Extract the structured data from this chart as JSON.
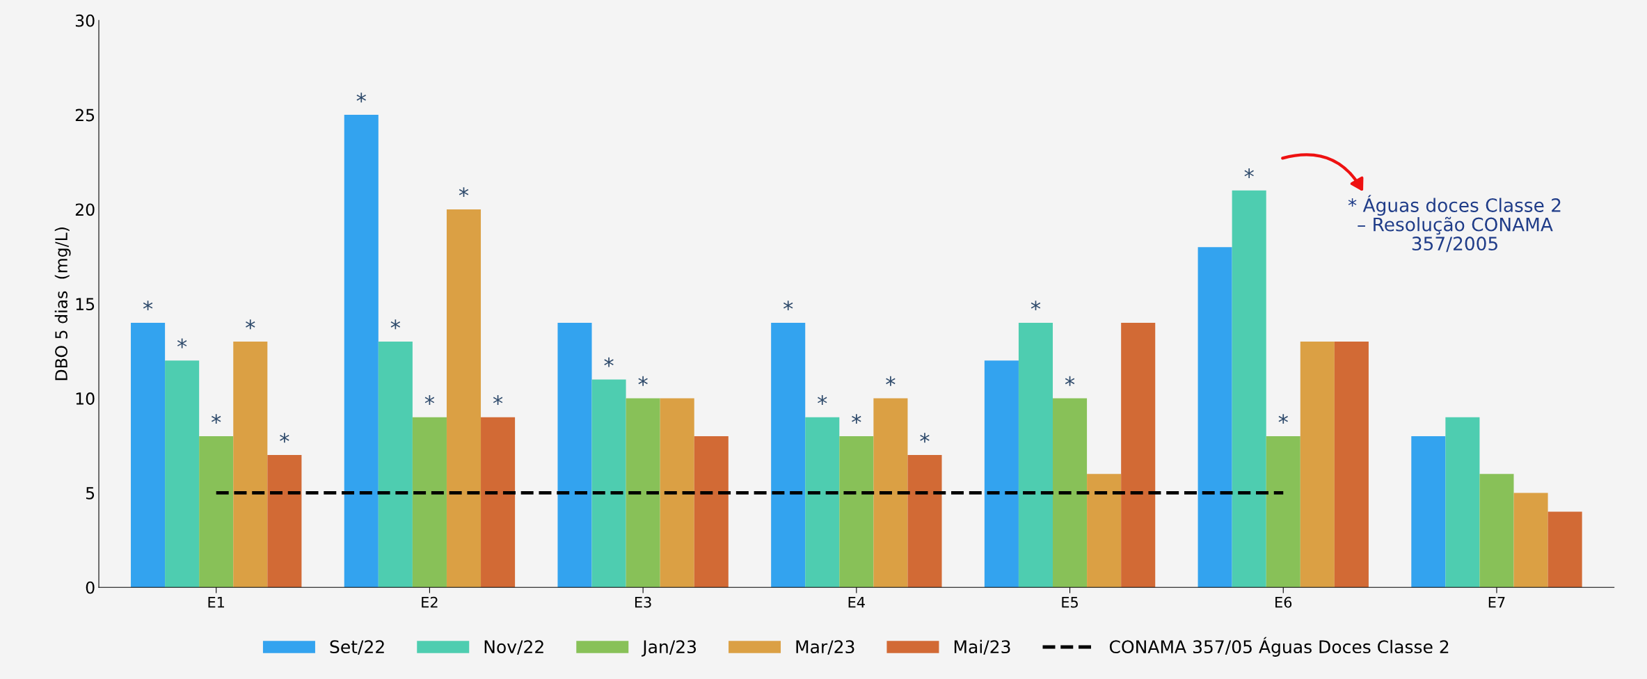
{
  "chart_data": {
    "type": "bar",
    "ylabel": "DBO 5 dias  (mg/L)",
    "categories": [
      "E1",
      "E2",
      "E3",
      "E4",
      "E5",
      "E6",
      "E7"
    ],
    "series": [
      {
        "name": "Set/22",
        "color": "#33a3ef",
        "values": [
          14,
          25,
          14,
          14,
          12,
          18,
          8
        ],
        "value_labels": [
          "*",
          "*",
          null,
          "*",
          null,
          null,
          null
        ]
      },
      {
        "name": "Nov/22",
        "color": "#4ecdb0",
        "values": [
          12,
          13,
          11,
          9,
          14,
          21,
          9
        ],
        "value_labels": [
          "*",
          "*",
          "*",
          "*",
          "*",
          "*",
          null
        ]
      },
      {
        "name": "Jan/23",
        "color": "#88c158",
        "values": [
          8,
          9,
          10,
          8,
          10,
          8,
          6
        ],
        "value_labels": [
          "*",
          "*",
          "*",
          "*",
          "*",
          "*",
          null
        ]
      },
      {
        "name": "Mar/23",
        "color": "#dba044",
        "values": [
          13,
          20,
          10,
          10,
          6,
          13,
          5
        ],
        "value_labels": [
          "*",
          "*",
          null,
          "*",
          null,
          null,
          null
        ]
      },
      {
        "name": "Mai/23",
        "color": "#d26a35",
        "values": [
          7,
          9,
          8,
          7,
          14,
          13,
          4
        ],
        "value_labels": [
          "*",
          "*",
          null,
          "*",
          null,
          null,
          null
        ]
      },
      {
        "name": "CONAMA 357/05 Águas Doces Classe 2",
        "type": "line",
        "color": "#000000",
        "line_style": "dashed",
        "values": [
          5,
          5,
          5,
          5,
          5,
          5,
          null
        ]
      }
    ],
    "ylim": [
      0,
      30
    ],
    "yticks": [
      0,
      5,
      10,
      15,
      20,
      25,
      30
    ],
    "grid": false,
    "legend": "bottom",
    "annotations": [
      "* Águas doces Classe 2\n– Resolução CONAMA\n357/2005"
    ]
  }
}
